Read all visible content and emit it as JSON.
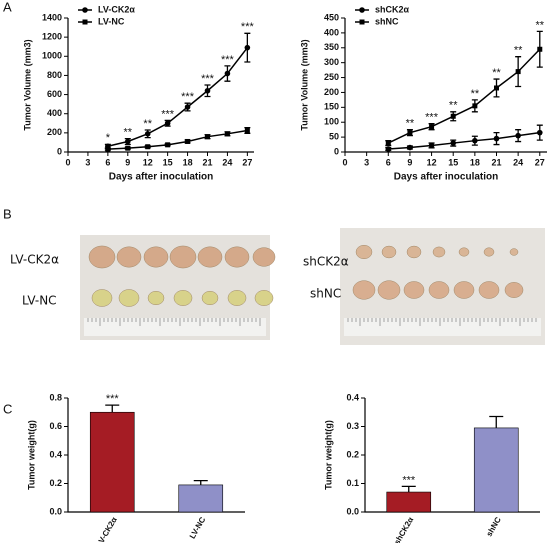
{
  "figure": {
    "panel_labels": [
      "A",
      "B",
      "C"
    ],
    "photos": [
      {
        "row_labels": [
          "LV-CK2α",
          "LV-NC"
        ]
      },
      {
        "row_labels": [
          "shCK2α",
          "shNC"
        ]
      }
    ]
  },
  "chart_data": [
    {
      "type": "line",
      "ylabel": "Tumor Volume (mm3)",
      "xlabel": "Days after inoculation",
      "x": [
        6,
        9,
        12,
        15,
        18,
        21,
        24,
        27
      ],
      "series": [
        {
          "name": "LV-CK2α",
          "color": "#000000",
          "marker": "circle",
          "values": [
            60,
            110,
            190,
            300,
            470,
            640,
            820,
            1090
          ],
          "errors": [
            20,
            30,
            40,
            30,
            40,
            60,
            80,
            150
          ]
        },
        {
          "name": "LV-NC",
          "color": "#000000",
          "marker": "square",
          "values": [
            30,
            40,
            55,
            75,
            110,
            160,
            190,
            225
          ],
          "errors": [
            10,
            10,
            10,
            10,
            15,
            20,
            20,
            30
          ]
        }
      ],
      "annotations": [
        "*",
        "**",
        "**",
        "***",
        "***",
        "***",
        "***",
        "***"
      ],
      "xlim": [
        0,
        28
      ],
      "xticks": [
        0,
        3,
        6,
        9,
        12,
        15,
        18,
        21,
        24,
        27
      ],
      "ylim": [
        0,
        1400
      ],
      "yticks": [
        0,
        200,
        400,
        600,
        800,
        1000,
        1200,
        1400
      ],
      "legend": "top-left"
    },
    {
      "type": "line",
      "ylabel": "Tumor Volume (mm3)",
      "xlabel": "Days after inoculation",
      "x": [
        6,
        9,
        12,
        15,
        18,
        21,
        24,
        27
      ],
      "series": [
        {
          "name": "shCK2α",
          "color": "#000000",
          "marker": "circle",
          "values": [
            10,
            15,
            22,
            30,
            38,
            45,
            55,
            65
          ],
          "errors": [
            5,
            5,
            8,
            10,
            15,
            20,
            20,
            25
          ]
        },
        {
          "name": "shNC",
          "color": "#000000",
          "marker": "square",
          "values": [
            30,
            65,
            85,
            120,
            155,
            215,
            270,
            345
          ],
          "errors": [
            8,
            10,
            10,
            15,
            20,
            30,
            50,
            60
          ]
        }
      ],
      "annotations": [
        null,
        "**",
        "***",
        "**",
        "**",
        "**",
        "**",
        "**"
      ],
      "xlim": [
        0,
        28
      ],
      "xticks": [
        0,
        3,
        6,
        9,
        12,
        15,
        18,
        21,
        24,
        27
      ],
      "ylim": [
        0,
        450
      ],
      "yticks": [
        0,
        50,
        100,
        150,
        200,
        250,
        300,
        350,
        400,
        450
      ],
      "legend": "top-left"
    },
    {
      "type": "bar",
      "ylabel": "Tumor weight(g)",
      "categories": [
        "LV-CK2α",
        "LV-NC"
      ],
      "values": [
        0.7,
        0.19
      ],
      "errors": [
        0.05,
        0.03
      ],
      "colors": [
        "#a51c24",
        "#8f90c8"
      ],
      "annotations": [
        "***",
        null
      ],
      "ylim": [
        0,
        0.8
      ],
      "yticks": [
        {
          "value": 0,
          "label": "0.0"
        },
        0.2,
        0.4,
        0.6,
        0.8
      ]
    },
    {
      "type": "bar",
      "ylabel": "Tumor weight(g)",
      "categories": [
        "shCK2α",
        "shNC"
      ],
      "values": [
        0.07,
        0.295
      ],
      "errors": [
        0.02,
        0.04
      ],
      "colors": [
        "#a51c24",
        "#8f90c8"
      ],
      "annotations": [
        "***",
        null
      ],
      "ylim": [
        0,
        0.4
      ],
      "yticks": [
        {
          "value": 0,
          "label": "0.0"
        },
        0.1,
        0.2,
        0.3,
        0.4
      ]
    }
  ]
}
